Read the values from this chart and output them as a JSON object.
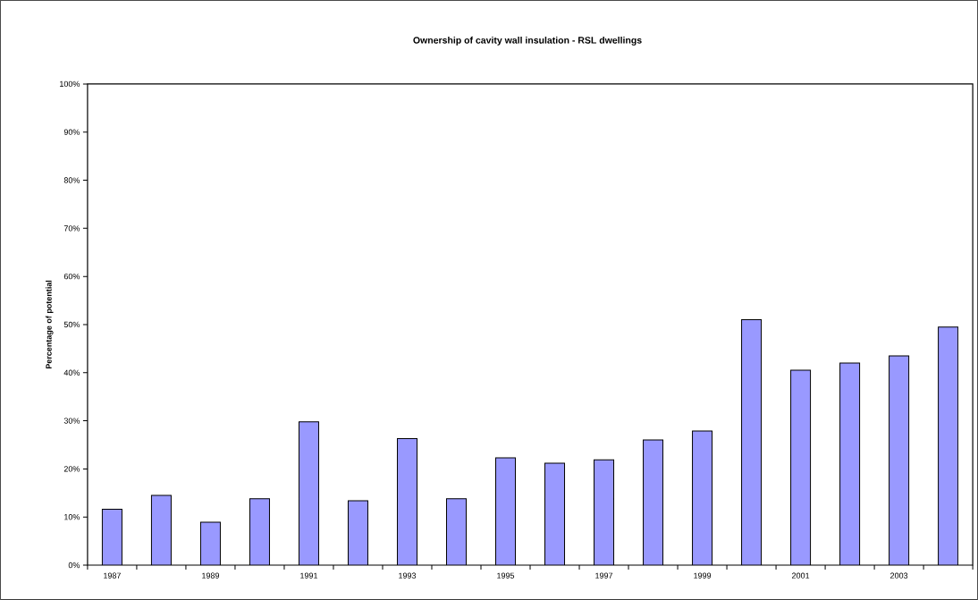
{
  "chart_data": {
    "type": "bar",
    "title": "**Ownership of cavity wall insulation - RSL dwellings**",
    "ylabel": "**Percentage of potential**",
    "categories": [
      "1987",
      null,
      "1989",
      null,
      "1991",
      null,
      "1993",
      null,
      "1995",
      null,
      "1997",
      null,
      "1999",
      null,
      "2001",
      null,
      "2003",
      null
    ],
    "values": [
      11.6,
      14.5,
      8.9,
      13.8,
      29.8,
      13.4,
      26.3,
      13.8,
      22.3,
      21.2,
      21.9,
      26.0,
      27.9,
      51.0,
      40.5,
      42.0,
      43.5,
      49.5
    ],
    "color": "#9999ff",
    "ylim": [
      0,
      100
    ],
    "yticks": [
      {
        "value": 0,
        "label": "0%"
      },
      {
        "value": 10,
        "label": "10%"
      },
      {
        "value": 20,
        "label": "20%"
      },
      {
        "value": 30,
        "label": "30%"
      },
      {
        "value": 40,
        "label": "40%"
      },
      {
        "value": 50,
        "label": "50%"
      },
      {
        "value": 60,
        "label": "60%"
      },
      {
        "value": 70,
        "label": "70%"
      },
      {
        "value": 80,
        "label": "80%"
      },
      {
        "value": 90,
        "label": "90%"
      },
      {
        "value": 100,
        "label": "100%"
      }
    ],
    "line_style": "solid"
  }
}
